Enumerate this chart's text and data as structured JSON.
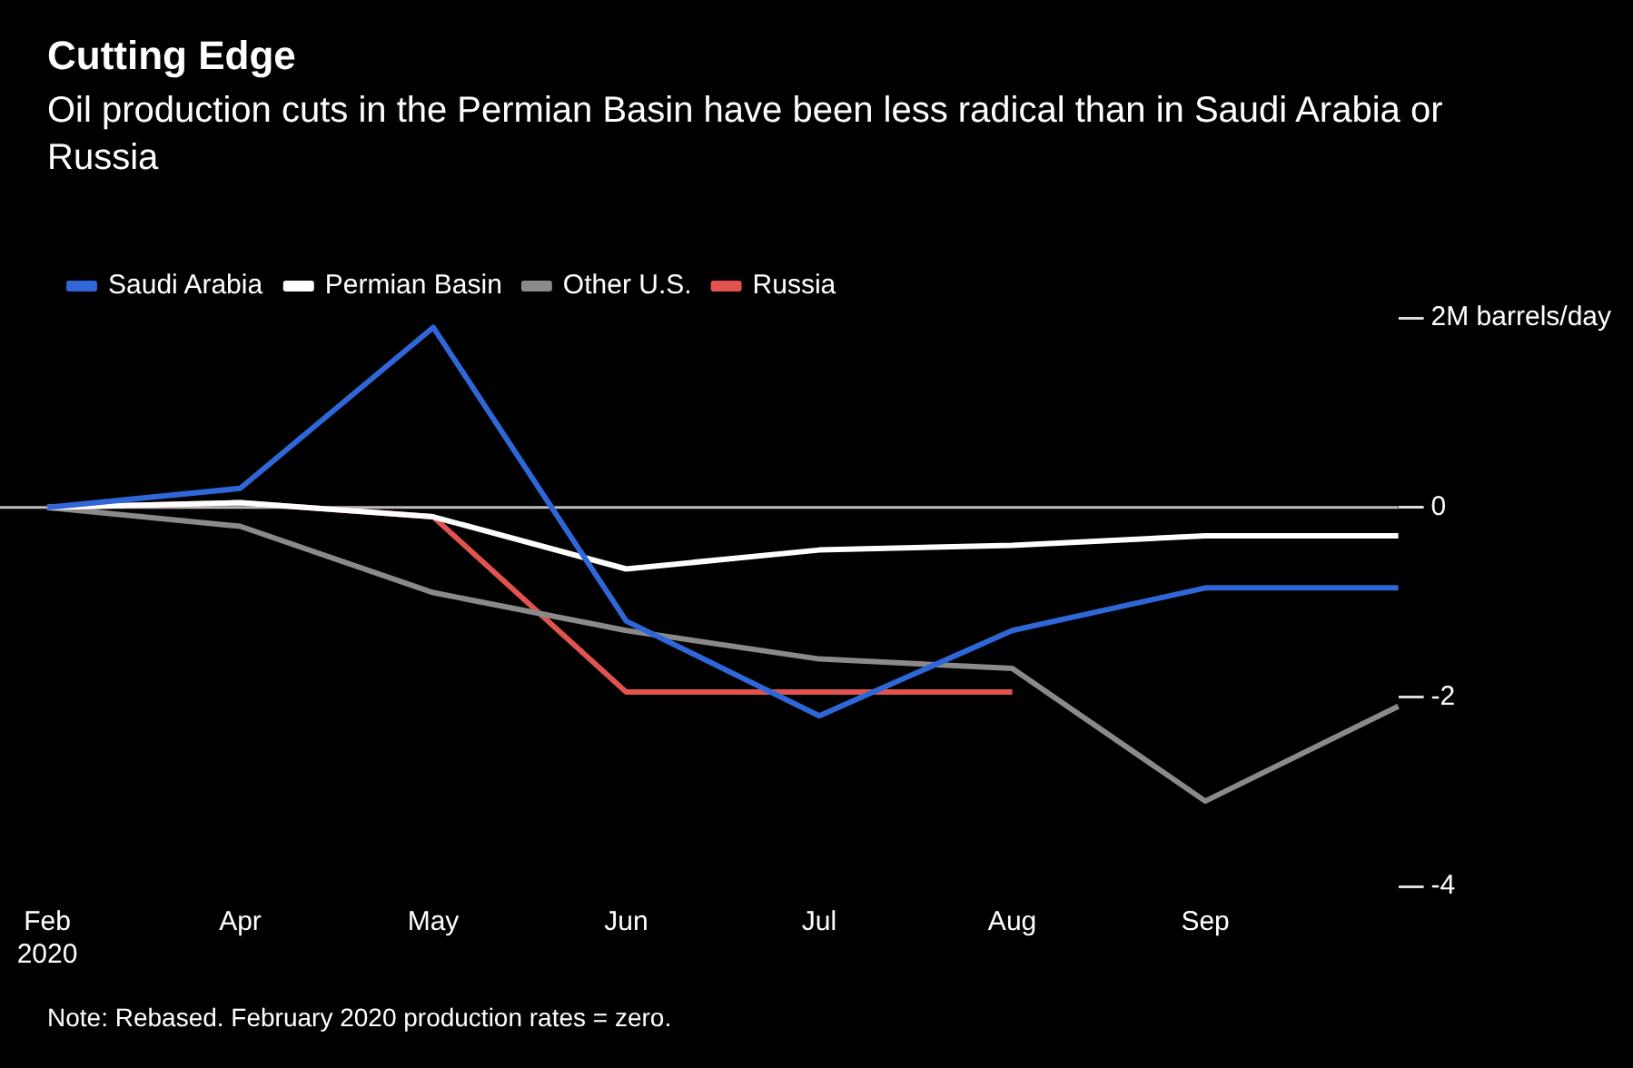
{
  "chart_data": {
    "type": "line",
    "title": "Cutting Edge",
    "subtitle": "Oil production cuts in the Permian Basin have been less radical than in Saudi Arabia or Russia",
    "categories": [
      "Feb\n2020",
      "Apr",
      "May",
      "Jun",
      "Jul",
      "Aug",
      "Sep",
      null
    ],
    "series": [
      {
        "name": "Saudi Arabia",
        "color": "#2f66d8",
        "values": [
          0,
          0.2,
          1.9,
          -1.2,
          -2.2,
          -1.3,
          -0.85,
          -0.85
        ]
      },
      {
        "name": "Permian Basin",
        "color": "#ffffff",
        "values": [
          0,
          0.05,
          -0.1,
          -0.65,
          -0.45,
          -0.4,
          -0.3,
          -0.3
        ]
      },
      {
        "name": "Other U.S.",
        "color": "#8a8a8a",
        "values": [
          0,
          -0.2,
          -0.9,
          -1.3,
          -1.6,
          -1.7,
          -3.1,
          -2.1
        ]
      },
      {
        "name": "Russia",
        "color": "#e0534f",
        "values": [
          0,
          0.05,
          -0.1,
          -1.95,
          -1.95,
          -1.95,
          null,
          null
        ]
      }
    ],
    "ylim": [
      -4,
      2
    ],
    "yticks": [
      {
        "value": 2,
        "label": "2M barrels/day"
      },
      0,
      -2,
      -4
    ],
    "ref_lines": [
      {
        "axis": "y",
        "value": 0,
        "color": "#bbbbbb"
      }
    ],
    "legend": "top left",
    "grid": false,
    "marker": "none",
    "line_style": "solid",
    "annotations": [
      "Note: Rebased. February 2020 production rates = zero."
    ]
  }
}
